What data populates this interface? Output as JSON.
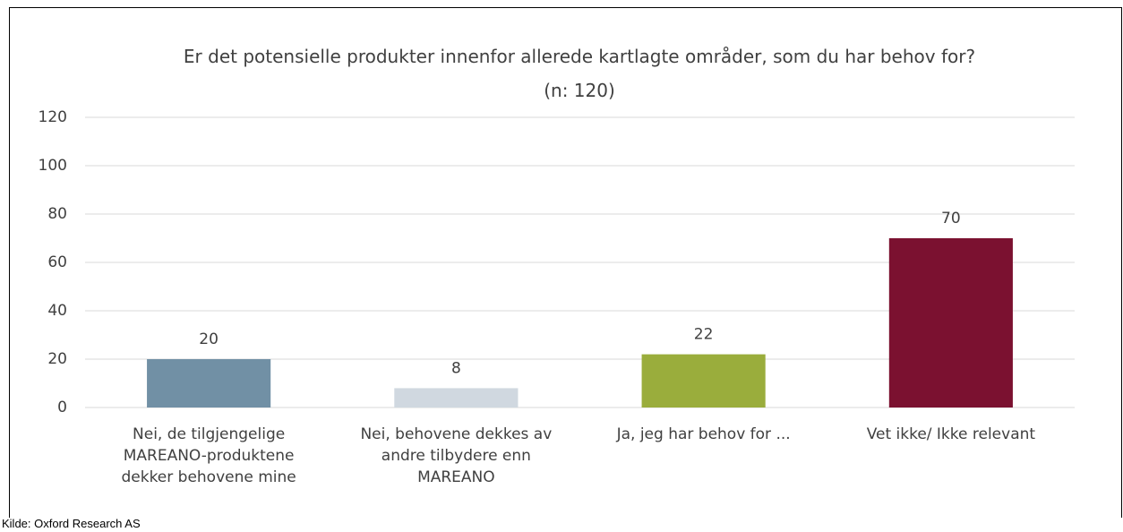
{
  "chart_data": {
    "type": "bar",
    "title": "Er det potensielle produkter innenfor allerede kartlagte områder, som du har behov for? (n: 120)",
    "categories": [
      "Nei, de tilgjengelige MAREANO-produktene dekker behovene mine",
      "Nei, behovene dekkes av andre tilbydere enn MAREANO",
      "Ja, jeg har behov for ...",
      "Vet ikke/ Ikke relevant"
    ],
    "values": [
      20,
      8,
      22,
      70
    ],
    "colors": [
      "#7190a5",
      "#d0d8e0",
      "#9aad3c",
      "#7b1130"
    ],
    "ylim": [
      0,
      120
    ],
    "yticks": [
      0,
      20,
      40,
      60,
      80,
      100,
      120
    ],
    "grid": true,
    "source": "Kilde: Oxford Research AS"
  }
}
